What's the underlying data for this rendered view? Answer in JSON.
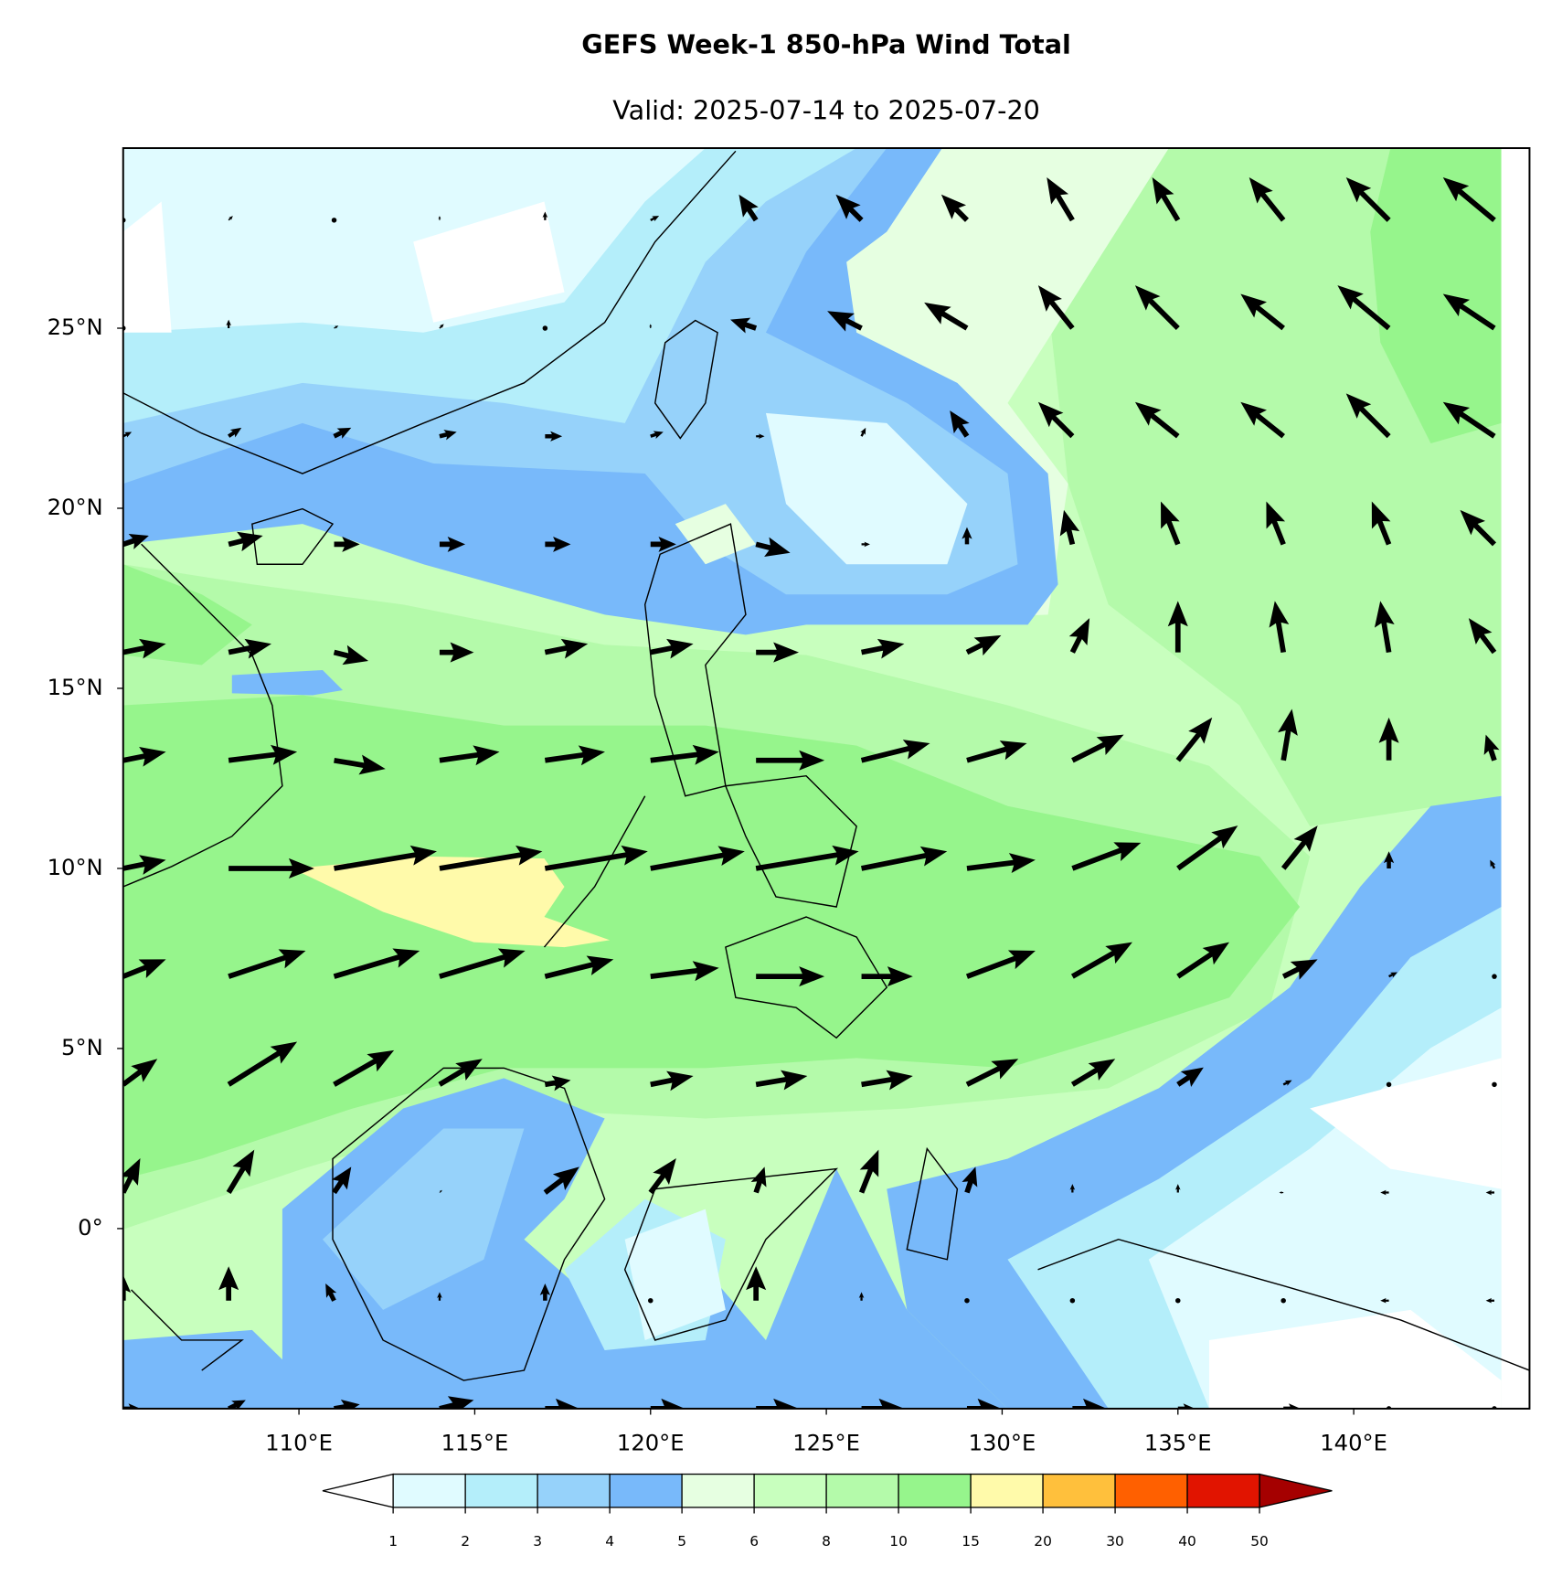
{
  "title": "GEFS Week-1 850-hPa Wind Total",
  "subtitle": "Valid: 2025-07-14 to 2025-07-20",
  "map": {
    "xlim": [
      105,
      145
    ],
    "ylim": [
      -5,
      30
    ],
    "xticks": [
      {
        "value": 110,
        "label": "110°E"
      },
      {
        "value": 115,
        "label": "115°E"
      },
      {
        "value": 120,
        "label": "120°E"
      },
      {
        "value": 125,
        "label": "125°E"
      },
      {
        "value": 130,
        "label": "130°E"
      },
      {
        "value": 135,
        "label": "135°E"
      },
      {
        "value": 140,
        "label": "140°E"
      }
    ],
    "yticks": [
      {
        "value": 0,
        "label": "0°"
      },
      {
        "value": 5,
        "label": "5°N"
      },
      {
        "value": 10,
        "label": "10°N"
      },
      {
        "value": 15,
        "label": "15°N"
      },
      {
        "value": 20,
        "label": "20°N"
      },
      {
        "value": 25,
        "label": "25°N"
      }
    ],
    "wind": {
      "color": "#000000",
      "lons": [
        105,
        108,
        111,
        114,
        117,
        120,
        123,
        126,
        129,
        132,
        135,
        138,
        141,
        144
      ],
      "lats": [
        28,
        25,
        22,
        19,
        16,
        13,
        10,
        7,
        4,
        1,
        -2,
        -5
      ],
      "u": [
        [
          0,
          0.5,
          0,
          0,
          0,
          1,
          -2,
          -3,
          -3,
          -3,
          -3,
          -4,
          -5,
          -6
        ],
        [
          0,
          0,
          0.5,
          0.5,
          0,
          0,
          -3,
          -4,
          -5,
          -4,
          -5,
          -5,
          -6,
          -6
        ],
        [
          1,
          1.5,
          2,
          2,
          2,
          1.5,
          1,
          0.5,
          -2,
          -4,
          -5,
          -5,
          -5,
          -6
        ],
        [
          3,
          4,
          3,
          3,
          3,
          3,
          4,
          1,
          0,
          -1,
          -2,
          -2,
          -2,
          -4
        ],
        [
          5,
          5,
          4,
          4,
          5,
          5,
          5,
          5,
          4,
          2,
          0,
          -1,
          -1,
          -3
        ],
        [
          5,
          8,
          6,
          7,
          7,
          8,
          8,
          8,
          7,
          6,
          4,
          1,
          0,
          -1
        ],
        [
          5,
          10,
          12,
          12,
          12,
          11,
          12,
          10,
          8,
          8,
          7,
          4,
          0,
          -0.5
        ],
        [
          5,
          9,
          10,
          10,
          8,
          8,
          8,
          6,
          8,
          7,
          6,
          4,
          1,
          0
        ],
        [
          4,
          8,
          7,
          5,
          3,
          5,
          6,
          6,
          6,
          5,
          3,
          1,
          0,
          0
        ],
        [
          2,
          3,
          2,
          0.3,
          4,
          3,
          1,
          2,
          1,
          0,
          0,
          -0.5,
          -1,
          -1
        ],
        [
          0,
          0,
          -1,
          0,
          0,
          0,
          0,
          0,
          0,
          0,
          0,
          0,
          -1,
          -1
        ],
        [
          2,
          2,
          3,
          4,
          4,
          4,
          5,
          5,
          4,
          4,
          2,
          2,
          0,
          0
        ]
      ],
      "v": [
        [
          0,
          0.5,
          0,
          0.5,
          1,
          0.5,
          3,
          3,
          3,
          5,
          5,
          5,
          5,
          5
        ],
        [
          0,
          1,
          0.3,
          0.5,
          0,
          0.5,
          1,
          2,
          3,
          5,
          5,
          4,
          5,
          4
        ],
        [
          0.5,
          1,
          1,
          0.5,
          0,
          0.5,
          0,
          1,
          3,
          4,
          4,
          4,
          5,
          4
        ],
        [
          1,
          1,
          0,
          0,
          0,
          0,
          -1,
          0,
          2,
          4,
          5,
          5,
          5,
          4
        ],
        [
          1,
          1,
          -1,
          0,
          1,
          1,
          0,
          1,
          2,
          4,
          6,
          6,
          6,
          4
        ],
        [
          1,
          1,
          -1,
          1,
          1,
          1,
          0,
          2,
          2,
          3,
          5,
          6,
          5,
          3
        ],
        [
          1,
          0,
          2,
          2,
          2,
          2,
          2,
          2,
          1,
          3,
          5,
          5,
          2,
          1
        ],
        [
          2,
          3,
          3,
          3,
          2,
          1,
          0,
          0,
          3,
          4,
          4,
          2,
          0.5,
          0
        ],
        [
          3,
          5,
          4,
          3,
          0.5,
          1,
          1,
          1,
          3,
          3,
          2,
          0.5,
          0,
          0
        ],
        [
          4,
          5,
          3,
          0.3,
          3,
          4,
          3,
          5,
          3,
          1,
          1,
          0,
          0,
          0
        ],
        [
          3,
          4,
          2,
          1,
          2,
          0,
          4,
          1,
          0,
          0,
          0,
          0,
          0,
          0
        ],
        [
          0,
          1,
          0.5,
          1,
          0,
          0,
          0,
          0,
          0,
          0,
          0,
          0,
          0,
          0
        ]
      ]
    }
  },
  "colorbar": {
    "levels": [
      1,
      2,
      3,
      4,
      5,
      6,
      8,
      10,
      15,
      20,
      30,
      40,
      50
    ],
    "colors": [
      "#e0fbff",
      "#b4eefa",
      "#96d2fa",
      "#78b9fa",
      "#e6ffe1",
      "#c8ffbe",
      "#b4faaa",
      "#96f58c",
      "#fffaaa",
      "#ffc03c",
      "#ff6000",
      "#e11400"
    ],
    "under_color": "#ffffff",
    "over_color": "#a50000"
  }
}
